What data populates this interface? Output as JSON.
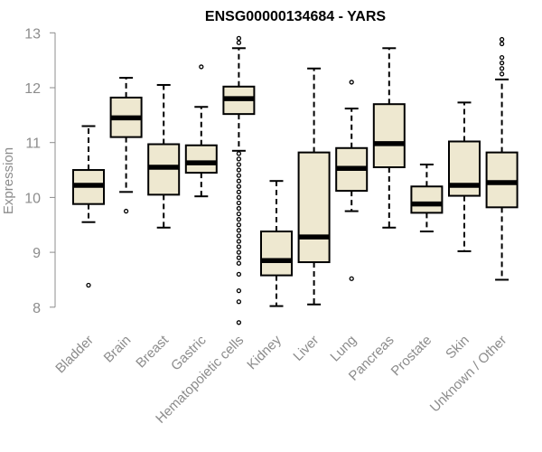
{
  "chart_data": {
    "type": "box",
    "title": "ENSG00000134684 - YARS",
    "xlabel": "",
    "ylabel": "Expression",
    "ylim": [
      7.65,
      13.05
    ],
    "yticks": [
      8,
      9,
      10,
      11,
      12,
      13
    ],
    "box_fill": "#EEE8D0",
    "categories": [
      "Bladder",
      "Brain",
      "Breast",
      "Gastric",
      "Hematopoietic cells",
      "Kidney",
      "Liver",
      "Lung",
      "Pancreas",
      "Prostate",
      "Skin",
      "Unknown / Other"
    ],
    "boxes": [
      {
        "category": "Bladder",
        "min": 9.55,
        "q1": 9.88,
        "median": 10.22,
        "q3": 10.5,
        "max": 11.3,
        "outliers": [
          8.4
        ]
      },
      {
        "category": "Brain",
        "min": 10.1,
        "q1": 11.1,
        "median": 11.45,
        "q3": 11.82,
        "max": 12.18,
        "outliers": [
          9.75
        ]
      },
      {
        "category": "Breast",
        "min": 9.45,
        "q1": 10.05,
        "median": 10.55,
        "q3": 10.97,
        "max": 12.05,
        "outliers": []
      },
      {
        "category": "Gastric",
        "min": 10.02,
        "q1": 10.45,
        "median": 10.63,
        "q3": 10.95,
        "max": 11.65,
        "outliers": [
          12.38
        ]
      },
      {
        "category": "Hematopoietic cells",
        "min": 10.85,
        "q1": 11.52,
        "median": 11.8,
        "q3": 12.02,
        "max": 12.72,
        "outliers": [
          12.82,
          12.9,
          10.8,
          10.7,
          10.6,
          10.5,
          10.4,
          10.3,
          10.2,
          10.1,
          10.0,
          9.9,
          9.8,
          9.7,
          9.6,
          9.5,
          9.4,
          9.3,
          9.2,
          9.1,
          9.0,
          8.9,
          8.8,
          8.6,
          8.3,
          8.1,
          7.72
        ]
      },
      {
        "category": "Kidney",
        "min": 8.02,
        "q1": 8.58,
        "median": 8.85,
        "q3": 9.38,
        "max": 10.3,
        "outliers": []
      },
      {
        "category": "Liver",
        "min": 8.05,
        "q1": 8.82,
        "median": 9.28,
        "q3": 10.82,
        "max": 12.35,
        "outliers": []
      },
      {
        "category": "Lung",
        "min": 9.75,
        "q1": 10.12,
        "median": 10.53,
        "q3": 10.9,
        "max": 11.62,
        "outliers": [
          12.1,
          8.52
        ]
      },
      {
        "category": "Pancreas",
        "min": 9.45,
        "q1": 10.55,
        "median": 10.98,
        "q3": 11.7,
        "max": 12.72,
        "outliers": []
      },
      {
        "category": "Prostate",
        "min": 9.38,
        "q1": 9.72,
        "median": 9.88,
        "q3": 10.2,
        "max": 10.6,
        "outliers": []
      },
      {
        "category": "Skin",
        "min": 9.02,
        "q1": 10.03,
        "median": 10.22,
        "q3": 11.02,
        "max": 11.73,
        "outliers": []
      },
      {
        "category": "Unknown / Other",
        "min": 8.5,
        "q1": 9.82,
        "median": 10.27,
        "q3": 10.82,
        "max": 12.15,
        "outliers": [
          12.25,
          12.35,
          12.45,
          12.55,
          12.8,
          12.88
        ]
      }
    ]
  }
}
